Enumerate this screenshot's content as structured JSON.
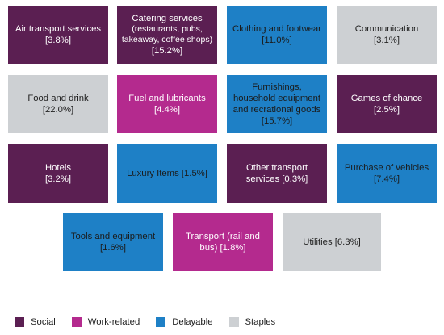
{
  "colors": {
    "social": "#5b1f52",
    "work_related": "#b42a8e",
    "delayable": "#1e80c6",
    "staples": "#cdd0d3"
  },
  "tiles": [
    {
      "label": "Air transport services",
      "percent": "[3.8%]",
      "category": "Social"
    },
    {
      "label": "Catering services",
      "sublabel": "(restaurants, pubs, takeaway, coffee shops)",
      "percent": "[15.2%]",
      "category": "Social"
    },
    {
      "label": "Clothing and footwear",
      "percent": "[11.0%]",
      "category": "Delayable"
    },
    {
      "label": "Communication",
      "percent": "[3.1%]",
      "category": "Staples"
    },
    {
      "label": "Food and drink",
      "percent": "[22.0%]",
      "category": "Staples"
    },
    {
      "label": "Fuel and lubricants",
      "percent": "[4.4%]",
      "category": "Work-related"
    },
    {
      "label": "Furnishings, household equipment and recrational goods",
      "percent": "[15.7%]",
      "category": "Delayable"
    },
    {
      "label": "Games of chance",
      "percent": "[2.5%]",
      "category": "Social"
    },
    {
      "label": "Hotels",
      "percent": "[3.2%]",
      "category": "Social"
    },
    {
      "label": "Luxury Items",
      "percent": "[1.5%]",
      "category": "Delayable"
    },
    {
      "label": "Other transport services",
      "percent": "[0.3%]",
      "category": "Social"
    },
    {
      "label": "Purchase of vehicles",
      "percent": "[7.4%]",
      "category": "Delayable"
    },
    {
      "label": "Tools and equipment",
      "percent": "[1.6%]",
      "category": "Delayable"
    },
    {
      "label": "Transport (rail and bus)",
      "percent": "[1.8%]",
      "category": "Work-related"
    },
    {
      "label": "Utilities",
      "percent": "[6.3%]",
      "category": "Staples"
    }
  ],
  "legend": [
    {
      "label": "Social",
      "color": "#5b1f52"
    },
    {
      "label": "Work-related",
      "color": "#b42a8e"
    },
    {
      "label": "Delayable",
      "color": "#1e80c6"
    },
    {
      "label": "Staples",
      "color": "#cdd0d3"
    }
  ]
}
